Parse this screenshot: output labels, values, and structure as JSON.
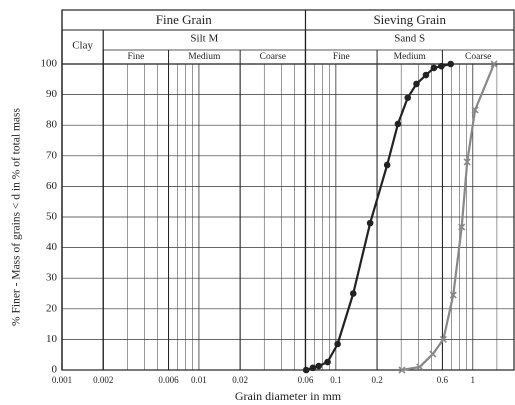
{
  "chart_data": {
    "type": "line",
    "x_label": "Grain diameter in mm",
    "y_label": "% Finer - Mass of grains < d in % of total mass",
    "log_x": true,
    "xlim": [
      0.001,
      2
    ],
    "ylim": [
      0,
      100
    ],
    "xticks": [
      0.001,
      0.002,
      0.006,
      0.01,
      0.02,
      0.06,
      0.1,
      0.2,
      0.6,
      1
    ],
    "yticks": [
      0,
      10,
      20,
      30,
      40,
      50,
      60,
      70,
      80,
      90,
      100
    ],
    "x_gridlines": [
      0.003,
      0.004,
      0.005,
      0.007,
      0.008,
      0.009,
      0.03,
      0.04,
      0.05,
      0.07,
      0.08,
      0.09,
      0.3,
      0.4,
      0.5,
      0.7,
      0.8,
      0.9,
      1.5
    ],
    "grid": true,
    "zones": [
      {
        "label": "Fine Grain",
        "from": 0.001,
        "to": 0.06
      },
      {
        "label": "Sieving Grain",
        "from": 0.06,
        "to": 2
      }
    ],
    "subzones": [
      {
        "label": "Clay",
        "from": 0.001,
        "to": 0.002,
        "parts": []
      },
      {
        "label": "Silt M",
        "from": 0.002,
        "to": 0.06,
        "parts": [
          {
            "label": "Fine",
            "from": 0.002,
            "to": 0.006
          },
          {
            "label": "Medium",
            "from": 0.006,
            "to": 0.02
          },
          {
            "label": "Coarse",
            "from": 0.02,
            "to": 0.06
          }
        ]
      },
      {
        "label": "Sand S",
        "from": 0.06,
        "to": 2,
        "parts": [
          {
            "label": "Fine",
            "from": 0.06,
            "to": 0.2
          },
          {
            "label": "Medium",
            "from": 0.2,
            "to": 0.6
          },
          {
            "label": "Coarse",
            "from": 0.6,
            "to": 2
          }
        ]
      }
    ],
    "series": [
      {
        "color": "#222222",
        "marker": "circle",
        "x": [
          0.0607,
          0.068,
          0.075,
          0.087,
          0.103,
          0.134,
          0.178,
          0.237,
          0.284,
          0.335,
          0.388,
          0.455,
          0.52,
          0.59,
          0.69
        ],
        "values": [
          0,
          0.7,
          1.3,
          2.6,
          8.5,
          25,
          48,
          67,
          80.4,
          89,
          93.5,
          96.4,
          98.7,
          99.3,
          100
        ]
      },
      {
        "color": "#888888",
        "marker": "x",
        "x": [
          0.304,
          0.41,
          0.51,
          0.61,
          0.72,
          0.83,
          0.91,
          1.04,
          1.43
        ],
        "values": [
          0,
          1,
          5.2,
          10,
          24.5,
          46.7,
          68,
          85,
          100
        ]
      }
    ]
  }
}
